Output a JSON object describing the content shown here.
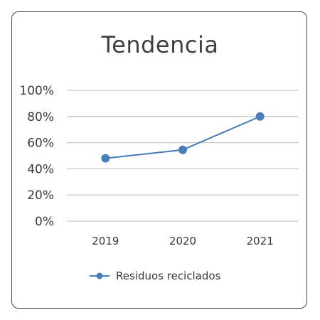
{
  "chart_data": {
    "type": "line",
    "title": "Tendencia",
    "xlabel": "",
    "ylabel": "",
    "categories": [
      "2019",
      "2020",
      "2021"
    ],
    "series": [
      {
        "name": "Residuos reciclados",
        "values": [
          0.48,
          0.545,
          0.8
        ]
      }
    ],
    "ylim": [
      0,
      1
    ],
    "y_ticks": [
      "0%",
      "20%",
      "40%",
      "60%",
      "80%",
      "100%"
    ],
    "y_tick_values": [
      0,
      0.2,
      0.4,
      0.6,
      0.8,
      1.0
    ],
    "grid": true,
    "legend_position": "bottom",
    "colors": {
      "series": "#4a7ebb",
      "grid": "#c8c8c8",
      "text": "#3a3a3a",
      "border": "#4a4a4a"
    }
  }
}
